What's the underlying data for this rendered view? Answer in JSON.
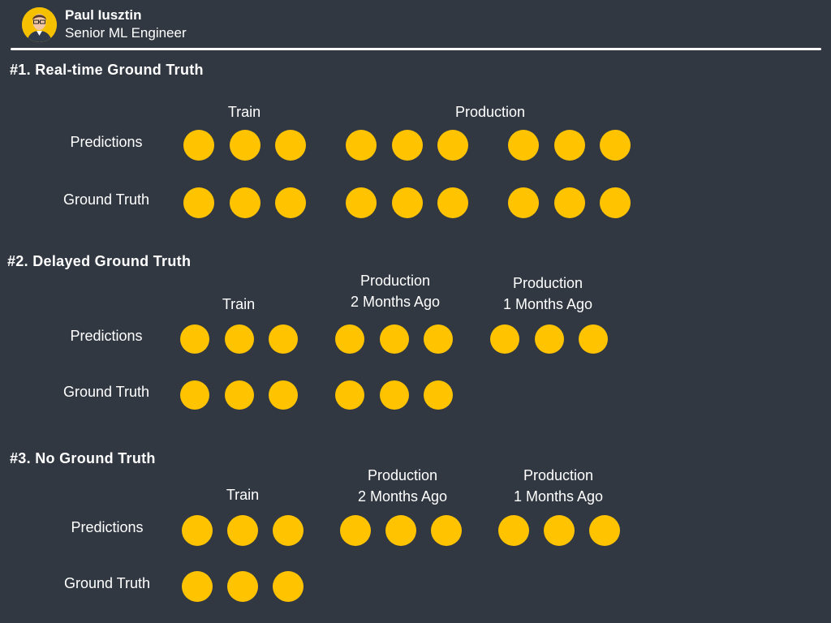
{
  "author": {
    "name": "Paul Iusztin",
    "role": "Senior ML Engineer",
    "avatar_color": "#f5c000"
  },
  "colors": {
    "background": "#313842",
    "dot": "#ffc300",
    "text": "#ffffff"
  },
  "sections": [
    {
      "title": "#1. Real-time Ground Truth",
      "columns": [
        {
          "line1": "Train",
          "line2": ""
        },
        {
          "line1": "Production",
          "line2": ""
        }
      ],
      "rows": [
        {
          "label": "Predictions",
          "dots_per_group": [
            3,
            3,
            3
          ]
        },
        {
          "label": "Ground Truth",
          "dots_per_group": [
            3,
            3,
            3
          ]
        }
      ]
    },
    {
      "title": "#2. Delayed Ground Truth",
      "columns": [
        {
          "line1": "Train",
          "line2": ""
        },
        {
          "line1": "Production",
          "line2": "2 Months Ago"
        },
        {
          "line1": "Production",
          "line2": "1 Months Ago"
        }
      ],
      "rows": [
        {
          "label": "Predictions",
          "dots_per_group": [
            3,
            3,
            3
          ]
        },
        {
          "label": "Ground Truth",
          "dots_per_group": [
            3,
            3,
            0
          ]
        }
      ]
    },
    {
      "title": "#3. No Ground Truth",
      "columns": [
        {
          "line1": "Train",
          "line2": ""
        },
        {
          "line1": "Production",
          "line2": "2 Months Ago"
        },
        {
          "line1": "Production",
          "line2": "1 Months Ago"
        }
      ],
      "rows": [
        {
          "label": "Predictions",
          "dots_per_group": [
            3,
            3,
            3
          ]
        },
        {
          "label": "Ground Truth",
          "dots_per_group": [
            3,
            0,
            0
          ]
        }
      ]
    }
  ]
}
